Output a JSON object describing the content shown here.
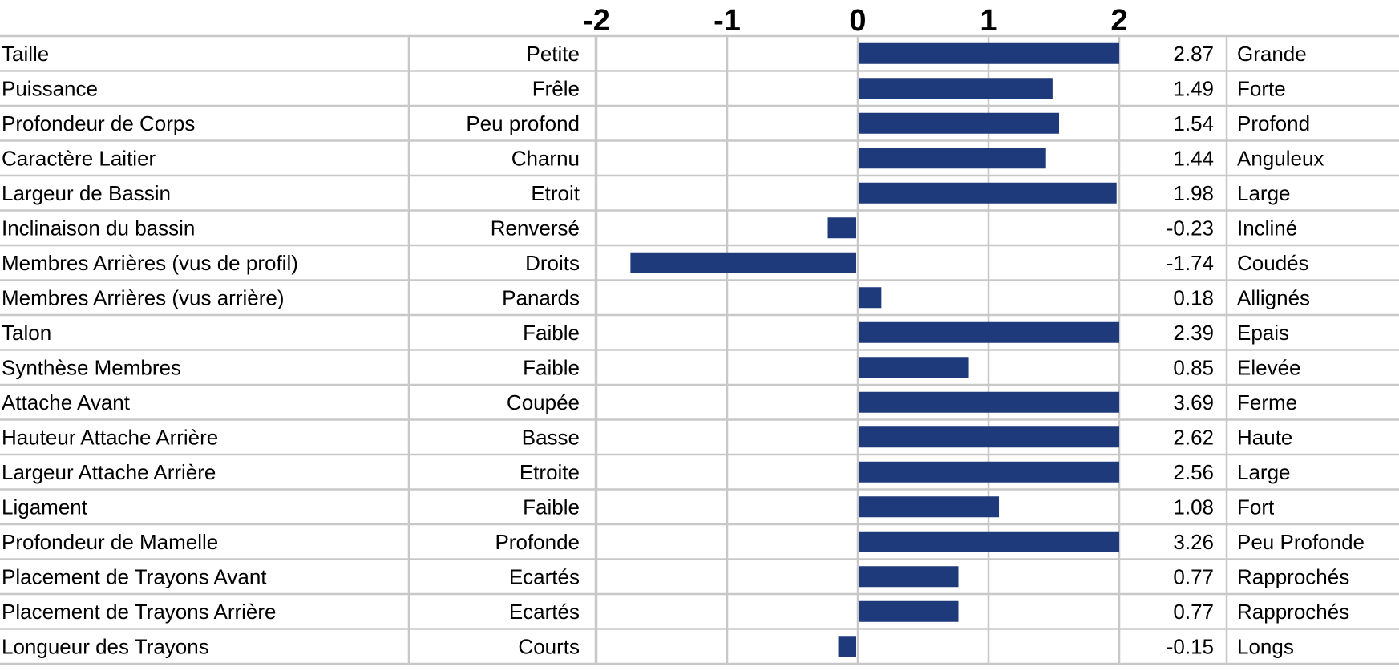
{
  "chart_data": {
    "type": "bar",
    "orientation": "horizontal",
    "xlim": [
      -2,
      2
    ],
    "x_ticks": [
      "-2",
      "-1",
      "0",
      "1",
      "2"
    ],
    "grid": true,
    "bar_color": "#1f3a7a",
    "rows": [
      {
        "trait": "Taille",
        "low": "Petite",
        "high": "Grande",
        "value": 2.87,
        "value_label": "2.87"
      },
      {
        "trait": "Puissance",
        "low": "Frêle",
        "high": "Forte",
        "value": 1.49,
        "value_label": "1.49"
      },
      {
        "trait": "Profondeur de Corps",
        "low": "Peu profond",
        "high": "Profond",
        "value": 1.54,
        "value_label": "1.54"
      },
      {
        "trait": "Caractère Laitier",
        "low": "Charnu",
        "high": "Anguleux",
        "value": 1.44,
        "value_label": "1.44"
      },
      {
        "trait": "Largeur de Bassin",
        "low": "Etroit",
        "high": "Large",
        "value": 1.98,
        "value_label": "1.98"
      },
      {
        "trait": "Inclinaison du bassin",
        "low": "Renversé",
        "high": "Incliné",
        "value": -0.23,
        "value_label": "-0.23"
      },
      {
        "trait": "Membres Arrières (vus de profil)",
        "low": "Droits",
        "high": "Coudés",
        "value": -1.74,
        "value_label": "-1.74"
      },
      {
        "trait": "Membres Arrières (vus arrière)",
        "low": "Panards",
        "high": "Allignés",
        "value": 0.18,
        "value_label": "0.18"
      },
      {
        "trait": "Talon",
        "low": "Faible",
        "high": "Epais",
        "value": 2.39,
        "value_label": "2.39"
      },
      {
        "trait": "Synthèse Membres",
        "low": "Faible",
        "high": "Elevée",
        "value": 0.85,
        "value_label": "0.85"
      },
      {
        "trait": "Attache Avant",
        "low": "Coupée",
        "high": "Ferme",
        "value": 3.69,
        "value_label": "3.69"
      },
      {
        "trait": "Hauteur Attache Arrière",
        "low": "Basse",
        "high": "Haute",
        "value": 2.62,
        "value_label": "2.62"
      },
      {
        "trait": "Largeur Attache Arrière",
        "low": "Etroite",
        "high": "Large",
        "value": 2.56,
        "value_label": "2.56"
      },
      {
        "trait": "Ligament",
        "low": "Faible",
        "high": "Fort",
        "value": 1.08,
        "value_label": "1.08"
      },
      {
        "trait": "Profondeur de Mamelle",
        "low": "Profonde",
        "high": "Peu Profonde",
        "value": 3.26,
        "value_label": "3.26"
      },
      {
        "trait": "Placement de Trayons Avant",
        "low": "Ecartés",
        "high": "Rapprochés",
        "value": 0.77,
        "value_label": "0.77"
      },
      {
        "trait": "Placement de Trayons Arrière",
        "low": "Ecartés",
        "high": "Rapprochés",
        "value": 0.77,
        "value_label": "0.77"
      },
      {
        "trait": "Longueur des Trayons",
        "low": "Courts",
        "high": "Longs",
        "value": -0.15,
        "value_label": "-0.15"
      }
    ]
  }
}
